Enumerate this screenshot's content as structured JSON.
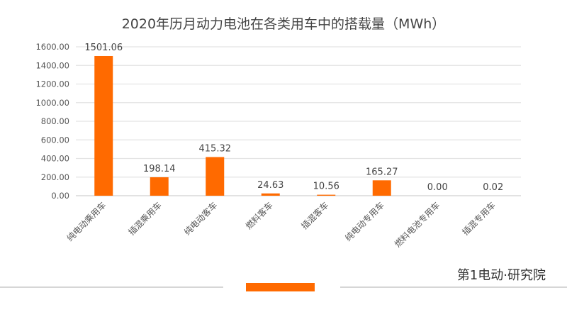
{
  "chart_data": {
    "type": "bar",
    "title": "2020年历月动力电池在各类用车中的搭载量（MWh）",
    "categories": [
      "纯电动乘用车",
      "插混乘用车",
      "纯电动客车",
      "燃料客车",
      "插混客车",
      "纯电动专用车",
      "燃料电池专用车",
      "插混专用车"
    ],
    "values": [
      1501.06,
      198.14,
      415.32,
      24.63,
      10.56,
      165.27,
      0.0,
      0.02
    ],
    "data_labels": [
      "1501.06",
      "198.14",
      "415.32",
      "24.63",
      "10.56",
      "165.27",
      "0.00",
      "0.02"
    ],
    "yticks": [
      "0.00",
      "200.00",
      "400.00",
      "600.00",
      "800.00",
      "1000.00",
      "1200.00",
      "1400.00",
      "1600.00"
    ],
    "ylim": [
      0,
      1600
    ],
    "grid": true,
    "legend": "none",
    "colors": {
      "bar": "#ff6a00",
      "grid": "#e3e3e3",
      "accent_bar": "#ff6a00"
    }
  },
  "watermark": "第1电动",
  "brand": "第1电动·研究院"
}
